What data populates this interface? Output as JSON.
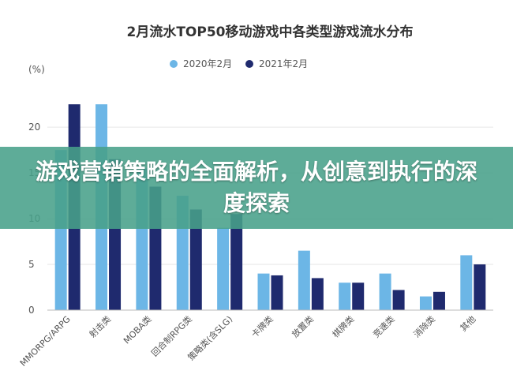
{
  "chart_data": {
    "type": "bar",
    "title": "2月流水TOP50移动游戏中各类型游戏流水分布",
    "ylabel": "(%)",
    "ylim": [
      0,
      27
    ],
    "yticks": [
      "0",
      "5",
      "10",
      "15",
      "20"
    ],
    "grid": true,
    "legend_position": "top",
    "categories": [
      "MMORPG/ARPG",
      "射击类",
      "MOBA类",
      "回合制RPG类",
      "策略类(含SLG)",
      "卡牌类",
      "放置类",
      "棋牌类",
      "竞速类",
      "消除类",
      "其他"
    ],
    "series": [
      {
        "name": "2020年2月",
        "color": "#6cb6e6",
        "values": [
          17.5,
          22.5,
          15.5,
          12.5,
          9,
          4,
          6.5,
          3,
          4,
          1.5,
          6
        ]
      },
      {
        "name": "2021年2月",
        "color": "#1f2a6e",
        "values": [
          22.5,
          16.5,
          13.5,
          11,
          10.5,
          3.8,
          3.5,
          3,
          2.2,
          2,
          5
        ]
      }
    ]
  },
  "overlay": {
    "headline": "游戏营销策略的全面解析，从创意到执行的深度探索",
    "background": "#48a08a"
  }
}
